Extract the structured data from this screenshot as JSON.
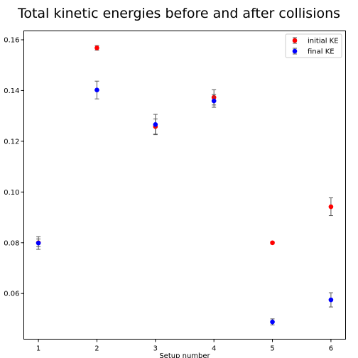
{
  "chart_data": {
    "type": "scatter",
    "title": "Total kinetic energies before and after collisions",
    "xlabel": "Setup number",
    "ylabel": "",
    "xlim": [
      0.75,
      6.25
    ],
    "ylim": [
      0.042,
      0.1635
    ],
    "xticks": [
      1,
      2,
      3,
      4,
      5,
      6
    ],
    "yticks": [
      0.06,
      0.08,
      0.1,
      0.12,
      0.14,
      0.16
    ],
    "ytick_labels": [
      "0.06",
      "0.08",
      "0.10",
      "0.12",
      "0.14",
      "0.16"
    ],
    "grid": false,
    "legend_position": "top-right",
    "series": [
      {
        "name": "initial KE",
        "color": "#ff0000",
        "x": [
          1,
          2,
          3,
          4,
          5,
          6
        ],
        "y": [
          0.08,
          0.1568,
          0.1258,
          0.1373,
          0.08,
          0.0942
        ],
        "yerr": [
          0.0015,
          0.0009,
          0.003,
          0.003,
          0.0004,
          0.0035
        ]
      },
      {
        "name": "final KE",
        "color": "#0000ff",
        "x": [
          1,
          2,
          3,
          4,
          5,
          6
        ],
        "y": [
          0.0799,
          0.1402,
          0.1266,
          0.1359,
          0.0488,
          0.0575
        ],
        "yerr": [
          0.0025,
          0.0035,
          0.004,
          0.0025,
          0.0012,
          0.0028
        ]
      }
    ]
  }
}
